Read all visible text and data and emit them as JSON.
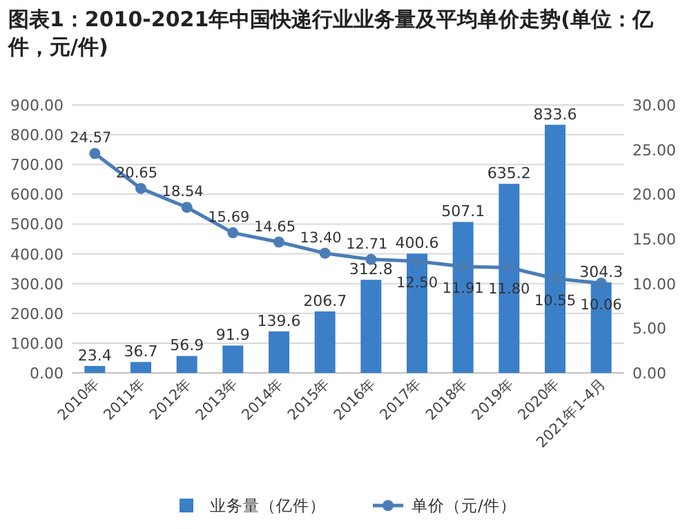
{
  "chart_data": {
    "type": "bar",
    "title": "图表1：2010-2021年中国快递行业业务量及平均单价走势(单位：亿件，元/件)",
    "categories": [
      "2010年",
      "2011年",
      "2012年",
      "2013年",
      "2014年",
      "2015年",
      "2016年",
      "2017年",
      "2018年",
      "2019年",
      "2020年",
      "2021年1-4月"
    ],
    "series": [
      {
        "name": "业务量（亿件）",
        "color": "#3b7fc9",
        "values": [
          23.4,
          36.7,
          56.9,
          91.9,
          139.6,
          206.7,
          312.8,
          400.6,
          507.1,
          635.2,
          833.6,
          304.3
        ],
        "value_labels": [
          "23.4",
          "36.7",
          "56.9",
          "91.9",
          "139.6",
          "206.7",
          "312.8",
          "400.6",
          "507.1",
          "635.2",
          "833.6",
          "304.3"
        ]
      },
      {
        "name": "单价（元/件）",
        "type": "line",
        "axis": "y2",
        "color": "#4a7db8",
        "values": [
          24.57,
          20.65,
          18.54,
          15.69,
          14.65,
          13.4,
          12.71,
          12.5,
          11.91,
          11.8,
          10.55,
          10.06
        ],
        "value_labels": [
          "24.57",
          "20.65",
          "18.54",
          "15.69",
          "14.65",
          "13.40",
          "12.71",
          "12.50",
          "11.91",
          "11.80",
          "10.55",
          "10.06"
        ]
      }
    ],
    "ylim": [
      0,
      900
    ],
    "yticks": [
      {
        "value": 0,
        "label": "0.00"
      },
      {
        "value": 100,
        "label": "100.00"
      },
      {
        "value": 200,
        "label": "200.00"
      },
      {
        "value": 300,
        "label": "300.00"
      },
      {
        "value": 400,
        "label": "400.00"
      },
      {
        "value": 500,
        "label": "500.00"
      },
      {
        "value": 600,
        "label": "600.00"
      },
      {
        "value": 700,
        "label": "700.00"
      },
      {
        "value": 800,
        "label": "800.00"
      },
      {
        "value": 900,
        "label": "900.00"
      }
    ],
    "y2lim": [
      0,
      30
    ],
    "y2ticks": [
      {
        "value": 0,
        "label": "0.00"
      },
      {
        "value": 5,
        "label": "5.00"
      },
      {
        "value": 10,
        "label": "10.00"
      },
      {
        "value": 15,
        "label": "15.00"
      },
      {
        "value": 20,
        "label": "20.00"
      },
      {
        "value": 25,
        "label": "25.00"
      },
      {
        "value": 30,
        "label": "30.00"
      }
    ],
    "grid": "y",
    "legend": "bottom",
    "marker": "circle"
  }
}
